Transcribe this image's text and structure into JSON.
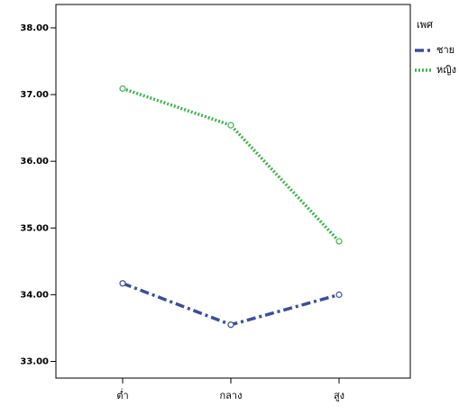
{
  "chart_data": {
    "type": "line",
    "legend_title": "เพศ",
    "categories": [
      "ต่ำ",
      "กลาง",
      "สูง"
    ],
    "series": [
      {
        "name": "ชาย",
        "color": "#3a4ea0",
        "dash": "dashdot",
        "values": [
          34.17,
          33.55,
          34.0
        ]
      },
      {
        "name": "หญิง",
        "color": "#3cb54a",
        "dash": "dotted",
        "values": [
          37.09,
          36.54,
          34.8
        ]
      }
    ],
    "ylim": [
      32.75,
      38.35
    ],
    "yticks": [
      {
        "value": 33,
        "label": "33.00"
      },
      {
        "value": 34,
        "label": "34.00"
      },
      {
        "value": 35,
        "label": "35.00"
      },
      {
        "value": 36,
        "label": "36.00"
      },
      {
        "value": 37,
        "label": "37.00"
      },
      {
        "value": 38,
        "label": "38.00"
      }
    ],
    "grid": false
  }
}
